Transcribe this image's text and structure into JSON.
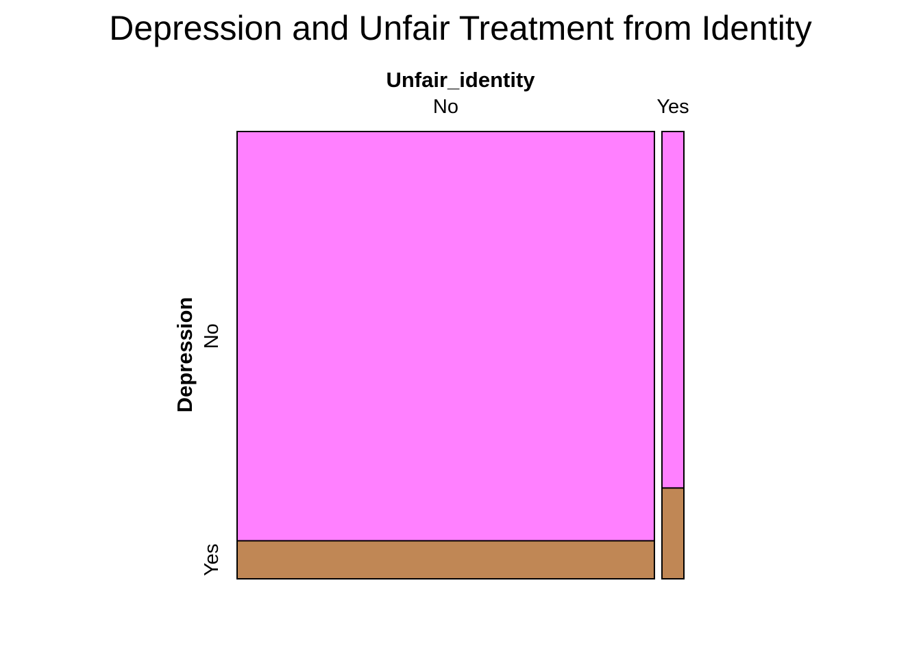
{
  "chart_data": {
    "type": "mosaic",
    "title": "Depression and Unfair Treatment from Identity",
    "x_variable": "Unfair_identity",
    "y_variable": "Depression",
    "x_categories": [
      "No",
      "Yes"
    ],
    "y_categories": [
      "No",
      "Yes"
    ],
    "column_proportions": [
      0.95,
      0.05
    ],
    "cells": [
      {
        "x": "No",
        "y": "No",
        "proportion_within_column": 0.915,
        "color": "#FF80FF"
      },
      {
        "x": "No",
        "y": "Yes",
        "proportion_within_column": 0.085,
        "color": "#C08755"
      },
      {
        "x": "Yes",
        "y": "No",
        "proportion_within_column": 0.797,
        "color": "#FF80FF"
      },
      {
        "x": "Yes",
        "y": "Yes",
        "proportion_within_column": 0.203,
        "color": "#C08755"
      }
    ],
    "colors": {
      "No": "#FF80FF",
      "Yes": "#C08755"
    }
  }
}
